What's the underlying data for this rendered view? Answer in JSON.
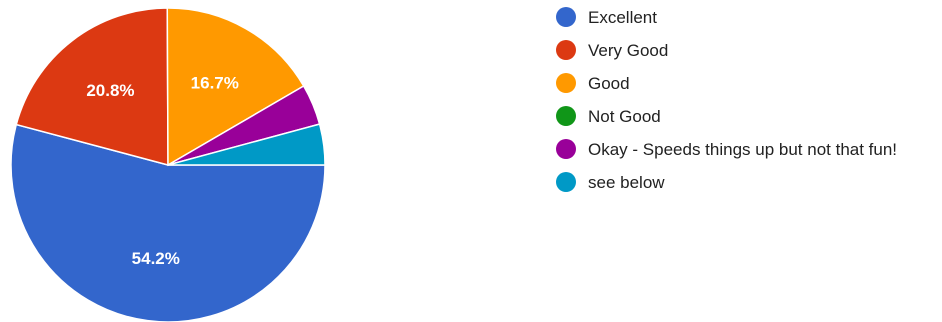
{
  "chart_data": {
    "type": "pie",
    "categories": [
      "Excellent",
      "Very Good",
      "Good",
      "Not Good",
      "Okay - Speeds things up but not that fun!",
      "see below"
    ],
    "values": [
      54.2,
      20.8,
      16.7,
      0,
      4.2,
      4.2
    ],
    "value_labels": [
      "54.2%",
      "20.8%",
      "16.7%",
      "",
      "",
      ""
    ],
    "colors": [
      "#3366cc",
      "#dc3912",
      "#ff9900",
      "#109618",
      "#990099",
      "#0099c6"
    ],
    "legend_position": "right",
    "start": "3 o'clock",
    "direction": "clockwise"
  }
}
